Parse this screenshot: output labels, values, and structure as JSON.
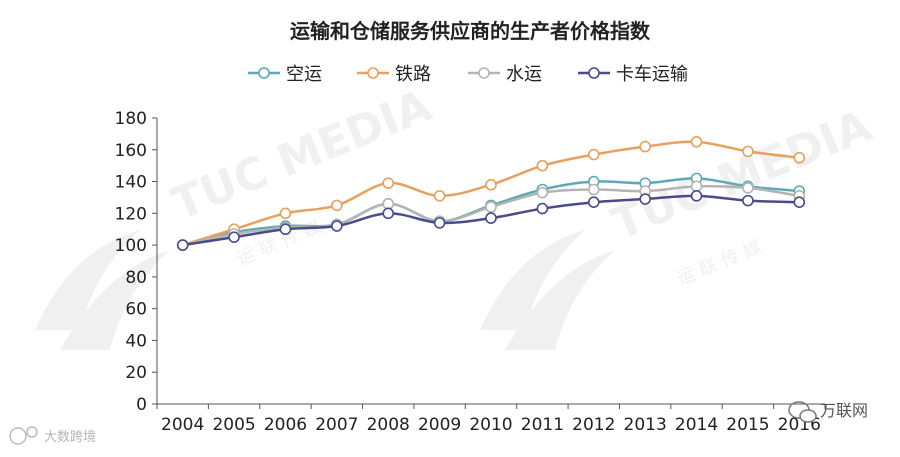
{
  "chart_data": {
    "type": "line",
    "title": "运输和仓储服务供应商的生产者价格指数",
    "xlabel": "",
    "ylabel": "",
    "ylim": [
      0,
      180
    ],
    "yticks": [
      0,
      20,
      40,
      60,
      80,
      100,
      120,
      140,
      160,
      180
    ],
    "x": [
      "2004",
      "2005",
      "2006",
      "2007",
      "2008",
      "2009",
      "2010",
      "2011",
      "2012",
      "2013",
      "2014",
      "2015",
      "2016"
    ],
    "legend_position": "top-center",
    "grid": false,
    "series": [
      {
        "name": "空运",
        "color": "#5ea9b5",
        "values": [
          100,
          108,
          112,
          113,
          126,
          115,
          125,
          135,
          140,
          139,
          142,
          137,
          134
        ]
      },
      {
        "name": "铁路",
        "color": "#e8a05f",
        "values": [
          100,
          110,
          120,
          125,
          139,
          131,
          138,
          150,
          157,
          162,
          165,
          159,
          155
        ]
      },
      {
        "name": "水运",
        "color": "#b4b4b4",
        "values": [
          100,
          107,
          111,
          113,
          126,
          115,
          124,
          133,
          135,
          134,
          137,
          136,
          131
        ]
      },
      {
        "name": "卡车运输",
        "color": "#4a4b8c",
        "values": [
          100,
          105,
          110,
          112,
          120,
          114,
          117,
          123,
          127,
          129,
          131,
          128,
          127
        ]
      }
    ]
  },
  "watermarks": {
    "center_logo": "TUC MEDIA",
    "center_sub": "运 联 传 媒",
    "bottom_left": "大数跨境",
    "bottom_right": "万联网"
  }
}
